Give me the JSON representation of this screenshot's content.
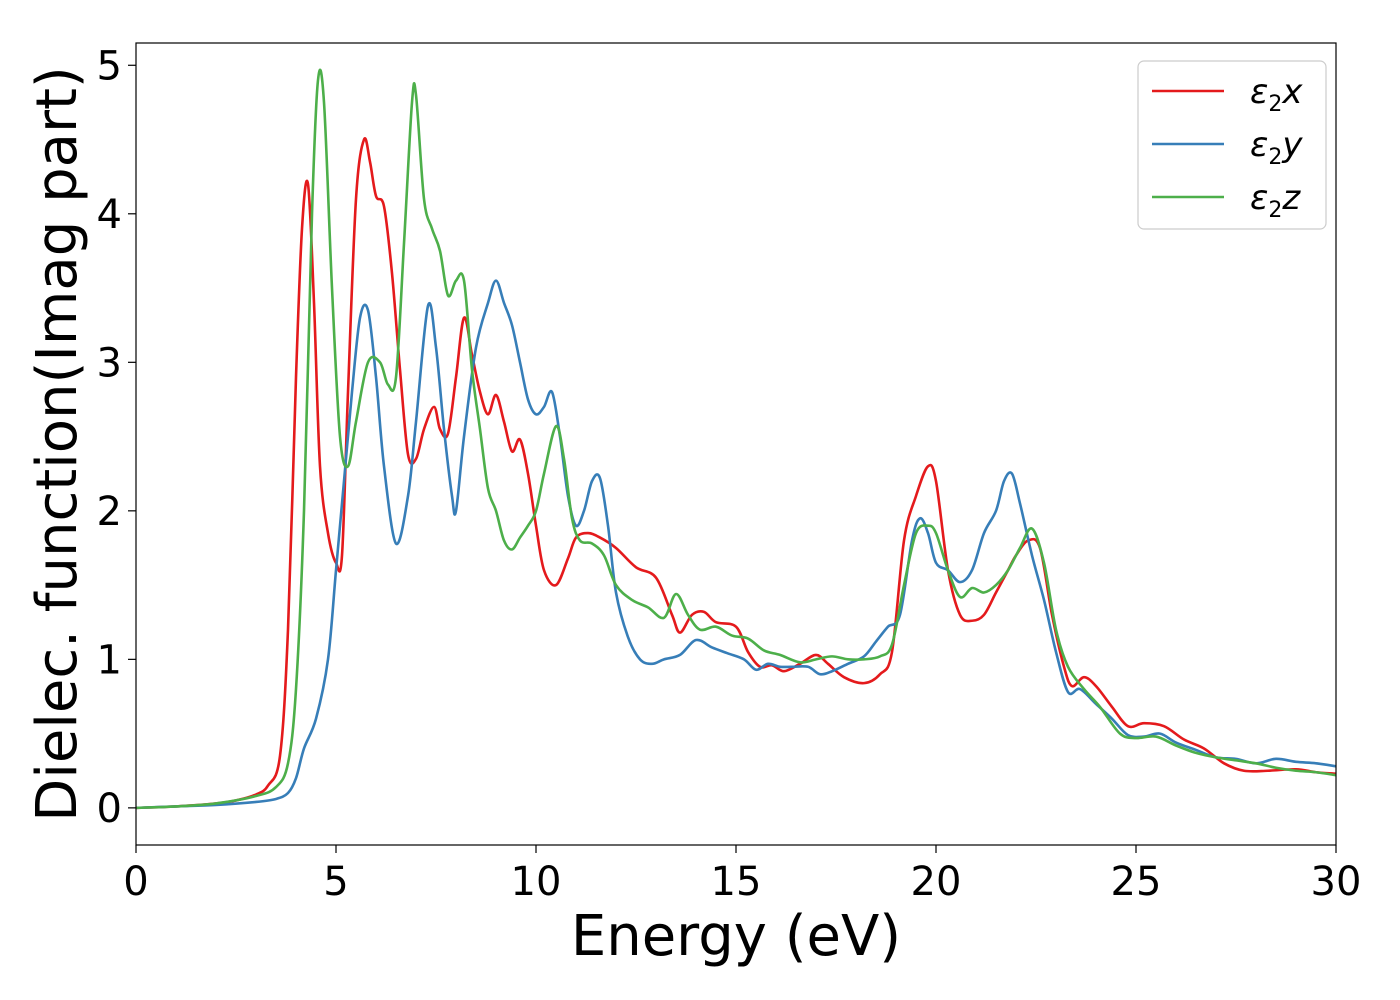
{
  "chart_data": {
    "type": "line",
    "xlabel": "Energy (eV)",
    "ylabel": "Dielec. function(Imag part)",
    "xlim": [
      0,
      30
    ],
    "ylim": [
      -0.25,
      5.15
    ],
    "xticks": [
      0,
      5,
      10,
      15,
      20,
      25,
      30
    ],
    "yticks": [
      0,
      1,
      2,
      3,
      4,
      5
    ],
    "grid": false,
    "legend_position": "top-right",
    "series": [
      {
        "name": "ε2x",
        "legend_main": "ε",
        "legend_sub": "2",
        "legend_tail": "x",
        "color": "#e41a1c",
        "x": [
          0,
          1,
          2,
          2.5,
          3,
          3.3,
          3.6,
          3.8,
          4.0,
          4.15,
          4.3,
          4.45,
          4.6,
          4.8,
          5.0,
          5.15,
          5.3,
          5.5,
          5.7,
          5.85,
          6.0,
          6.2,
          6.4,
          6.6,
          6.8,
          7.0,
          7.2,
          7.45,
          7.6,
          7.8,
          8.0,
          8.2,
          8.4,
          8.6,
          8.8,
          9.0,
          9.2,
          9.4,
          9.6,
          9.8,
          10.0,
          10.2,
          10.5,
          10.8,
          11.0,
          11.3,
          11.6,
          12.0,
          12.5,
          13.0,
          13.4,
          13.6,
          13.9,
          14.2,
          14.5,
          15.0,
          15.3,
          15.6,
          15.9,
          16.2,
          16.6,
          17.0,
          17.3,
          17.7,
          18.2,
          18.6,
          18.9,
          19.2,
          19.5,
          19.8,
          20.0,
          20.3,
          20.6,
          20.9,
          21.2,
          21.5,
          21.8,
          22.0,
          22.3,
          22.6,
          22.9,
          23.2,
          23.4,
          23.7,
          24.0,
          24.4,
          24.8,
          25.2,
          25.7,
          26.2,
          26.7,
          27.2,
          27.7,
          28.3,
          29.0,
          29.5,
          30.0
        ],
        "y": [
          0.0,
          0.01,
          0.03,
          0.05,
          0.09,
          0.15,
          0.35,
          1.2,
          2.9,
          3.9,
          4.2,
          3.4,
          2.3,
          1.85,
          1.65,
          1.7,
          2.8,
          4.1,
          4.5,
          4.35,
          4.12,
          4.05,
          3.6,
          2.95,
          2.38,
          2.35,
          2.55,
          2.7,
          2.55,
          2.52,
          2.9,
          3.3,
          3.05,
          2.8,
          2.65,
          2.78,
          2.6,
          2.4,
          2.48,
          2.25,
          1.9,
          1.6,
          1.5,
          1.68,
          1.82,
          1.85,
          1.82,
          1.75,
          1.62,
          1.55,
          1.3,
          1.18,
          1.3,
          1.32,
          1.25,
          1.22,
          1.05,
          0.95,
          0.96,
          0.92,
          0.97,
          1.03,
          0.97,
          0.88,
          0.84,
          0.9,
          1.05,
          1.8,
          2.1,
          2.3,
          2.2,
          1.6,
          1.3,
          1.26,
          1.3,
          1.45,
          1.6,
          1.7,
          1.8,
          1.75,
          1.3,
          0.95,
          0.82,
          0.88,
          0.82,
          0.68,
          0.55,
          0.57,
          0.55,
          0.46,
          0.4,
          0.3,
          0.25,
          0.25,
          0.26,
          0.24,
          0.23
        ]
      },
      {
        "name": "ε2y",
        "legend_main": "ε",
        "legend_sub": "2",
        "legend_tail": "y",
        "color": "#377eb8",
        "x": [
          0,
          1,
          2,
          3,
          3.5,
          3.8,
          4.0,
          4.2,
          4.5,
          4.8,
          5.0,
          5.2,
          5.4,
          5.6,
          5.8,
          6.0,
          6.2,
          6.5,
          6.8,
          7.0,
          7.3,
          7.5,
          7.7,
          7.9,
          8.0,
          8.2,
          8.5,
          8.8,
          9.0,
          9.2,
          9.4,
          9.6,
          9.8,
          10.0,
          10.2,
          10.4,
          10.6,
          10.8,
          11.0,
          11.2,
          11.4,
          11.6,
          11.8,
          12.0,
          12.3,
          12.6,
          12.9,
          13.2,
          13.6,
          14.0,
          14.4,
          14.8,
          15.2,
          15.5,
          15.8,
          16.1,
          16.4,
          16.8,
          17.1,
          17.4,
          17.8,
          18.2,
          18.5,
          18.8,
          19.1,
          19.4,
          19.6,
          19.8,
          20.0,
          20.3,
          20.6,
          20.9,
          21.2,
          21.5,
          21.7,
          21.9,
          22.1,
          22.4,
          22.7,
          23.0,
          23.3,
          23.6,
          24.0,
          24.4,
          24.8,
          25.2,
          25.6,
          26.0,
          26.5,
          27.0,
          27.5,
          28.0,
          28.5,
          29.0,
          29.5,
          30.0
        ],
        "y": [
          0.0,
          0.01,
          0.02,
          0.04,
          0.06,
          0.1,
          0.2,
          0.4,
          0.6,
          1.0,
          1.6,
          2.2,
          2.8,
          3.3,
          3.35,
          2.9,
          2.3,
          1.78,
          2.1,
          2.6,
          3.38,
          3.1,
          2.55,
          2.1,
          2.0,
          2.5,
          3.1,
          3.4,
          3.55,
          3.4,
          3.25,
          3.0,
          2.75,
          2.65,
          2.7,
          2.8,
          2.5,
          2.1,
          1.9,
          2.0,
          2.2,
          2.22,
          1.9,
          1.45,
          1.15,
          1.0,
          0.97,
          1.0,
          1.03,
          1.13,
          1.08,
          1.04,
          1.0,
          0.93,
          0.97,
          0.95,
          0.95,
          0.95,
          0.9,
          0.92,
          0.97,
          1.02,
          1.12,
          1.22,
          1.3,
          1.8,
          1.95,
          1.85,
          1.65,
          1.6,
          1.52,
          1.6,
          1.85,
          2.0,
          2.2,
          2.25,
          2.05,
          1.7,
          1.4,
          1.05,
          0.78,
          0.8,
          0.7,
          0.6,
          0.49,
          0.48,
          0.5,
          0.44,
          0.39,
          0.34,
          0.33,
          0.3,
          0.33,
          0.31,
          0.3,
          0.28
        ]
      },
      {
        "name": "ε2z",
        "legend_main": "ε",
        "legend_sub": "2",
        "legend_tail": "z",
        "color": "#4daf4a",
        "x": [
          0,
          1,
          2,
          3,
          3.5,
          3.8,
          4.0,
          4.2,
          4.4,
          4.55,
          4.7,
          4.9,
          5.1,
          5.3,
          5.5,
          5.8,
          6.1,
          6.3,
          6.5,
          6.7,
          6.9,
          7.0,
          7.2,
          7.4,
          7.6,
          7.8,
          8.0,
          8.2,
          8.4,
          8.6,
          8.8,
          9.0,
          9.2,
          9.4,
          9.6,
          9.8,
          10.0,
          10.2,
          10.5,
          10.7,
          10.9,
          11.1,
          11.4,
          11.7,
          12.0,
          12.4,
          12.8,
          13.2,
          13.5,
          13.8,
          14.1,
          14.5,
          14.9,
          15.3,
          15.7,
          16.1,
          16.6,
          17.0,
          17.4,
          17.8,
          18.2,
          18.6,
          18.9,
          19.2,
          19.5,
          19.8,
          20.0,
          20.3,
          20.6,
          20.9,
          21.2,
          21.5,
          21.8,
          22.1,
          22.4,
          22.7,
          23.0,
          23.3,
          23.7,
          24.1,
          24.6,
          25.0,
          25.5,
          26.0,
          26.5,
          27.0,
          27.5,
          28.0,
          28.5,
          29.0,
          29.5,
          30.0
        ],
        "y": [
          0.0,
          0.01,
          0.03,
          0.08,
          0.14,
          0.3,
          0.8,
          2.0,
          4.0,
          4.9,
          4.75,
          3.5,
          2.5,
          2.3,
          2.6,
          3.0,
          3.0,
          2.85,
          2.9,
          3.8,
          4.75,
          4.8,
          4.1,
          3.9,
          3.75,
          3.45,
          3.55,
          3.55,
          2.95,
          2.55,
          2.15,
          2.0,
          1.8,
          1.74,
          1.82,
          1.9,
          2.0,
          2.25,
          2.57,
          2.35,
          1.95,
          1.8,
          1.78,
          1.7,
          1.5,
          1.4,
          1.35,
          1.28,
          1.44,
          1.3,
          1.2,
          1.22,
          1.16,
          1.14,
          1.06,
          1.03,
          0.98,
          1.0,
          1.02,
          1.0,
          1.0,
          1.02,
          1.1,
          1.5,
          1.85,
          1.9,
          1.85,
          1.6,
          1.42,
          1.48,
          1.45,
          1.5,
          1.6,
          1.75,
          1.88,
          1.65,
          1.2,
          0.95,
          0.8,
          0.68,
          0.5,
          0.47,
          0.48,
          0.42,
          0.37,
          0.34,
          0.32,
          0.3,
          0.27,
          0.25,
          0.24,
          0.22
        ]
      }
    ]
  }
}
